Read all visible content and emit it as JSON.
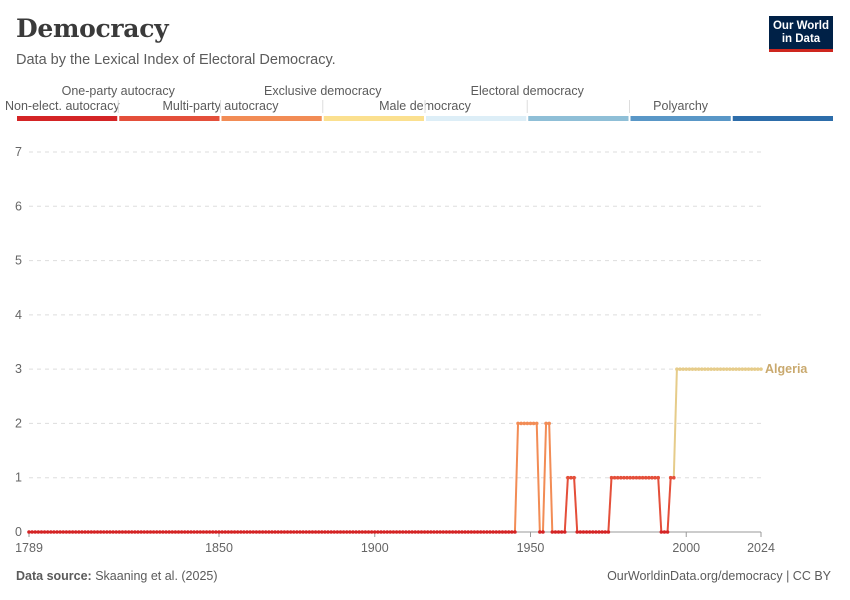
{
  "header": {
    "title": "Democracy",
    "subtitle": "Data by the Lexical Index of Electoral Democracy.",
    "logo_line1": "Our World",
    "logo_line2": "in Data"
  },
  "footer": {
    "source_label": "Data source:",
    "source_text": "Skaaning et al. (2025)",
    "url": "OurWorldinData.org/democracy | CC BY"
  },
  "colors": {
    "background": "#ffffff",
    "gridline": "#dddddd",
    "text": "#5b5b5b",
    "series_label": "#c9a96e"
  },
  "chart_data": {
    "type": "line",
    "title": "Democracy",
    "subtitle": "Data by the Lexical Index of Electoral Democracy.",
    "xlim": [
      1789,
      2024
    ],
    "ylim": [
      0,
      7
    ],
    "x_ticks": [
      1789,
      1850,
      1900,
      1950,
      2000,
      2024
    ],
    "y_ticks": [
      0,
      1,
      2,
      3,
      4,
      5,
      6,
      7
    ],
    "grid": "horizontal-dashed",
    "legend_placement": "top",
    "categories": [
      {
        "label": "Non-elect. autocracy",
        "color": "#d42425"
      },
      {
        "label": "One-party autocracy",
        "color": "#e44f3a"
      },
      {
        "label": "Multi-party autocracy",
        "color": "#f28c55"
      },
      {
        "label": "Exclusive democracy",
        "color": "#fbe08f"
      },
      {
        "label": "Male democracy",
        "color": "#ddeef7"
      },
      {
        "label": "Electoral democracy",
        "color": "#8fbfd7"
      },
      {
        "label": "Polyarchy",
        "color": "#5997c7"
      },
      {
        "label": "",
        "color": "#2d6daa"
      }
    ],
    "value_colors": {
      "0": "#d42425",
      "1": "#e44f3a",
      "2": "#f28c55",
      "3": "#e6cc8a"
    },
    "series": [
      {
        "name": "Algeria",
        "segments": [
          {
            "from": 1789,
            "to": 1945,
            "value": 0
          },
          {
            "from": 1946,
            "to": 1952,
            "value": 2
          },
          {
            "from": 1953,
            "to": 1954,
            "value": 0
          },
          {
            "from": 1955,
            "to": 1956,
            "value": 2
          },
          {
            "from": 1957,
            "to": 1961,
            "value": 0
          },
          {
            "from": 1962,
            "to": 1964,
            "value": 1
          },
          {
            "from": 1965,
            "to": 1975,
            "value": 0
          },
          {
            "from": 1976,
            "to": 1991,
            "value": 1
          },
          {
            "from": 1992,
            "to": 1994,
            "value": 0
          },
          {
            "from": 1995,
            "to": 1996,
            "value": 1
          },
          {
            "from": 1997,
            "to": 2024,
            "value": 3
          }
        ]
      }
    ]
  }
}
